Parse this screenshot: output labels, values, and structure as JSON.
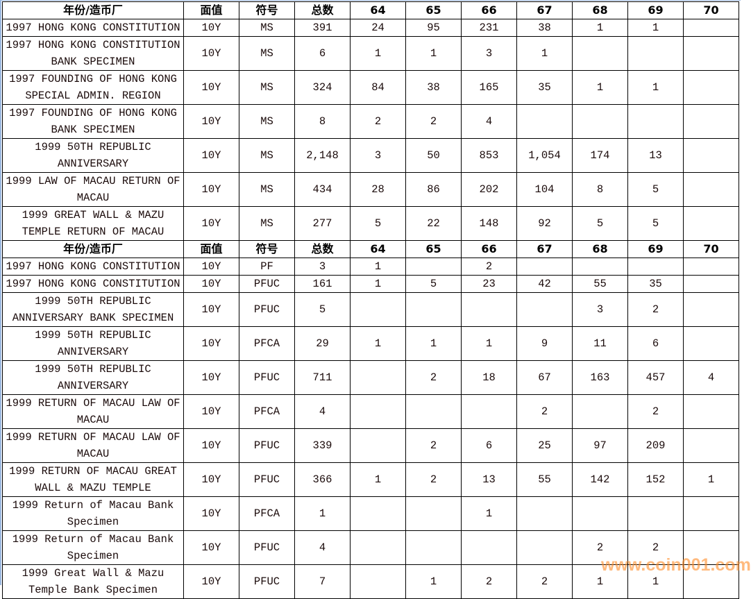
{
  "headers": [
    "年份/造币厂",
    "面值",
    "符号",
    "总数",
    "64",
    "65",
    "66",
    "67",
    "68",
    "69",
    "70"
  ],
  "section1": [
    {
      "name": "1997 HONG KONG CONSTITUTION",
      "d": "10Y",
      "s": "MS",
      "v": [
        "391",
        "24",
        "95",
        "231",
        "38",
        "1",
        "1",
        ""
      ]
    },
    {
      "name": "1997 HONG KONG CONSTITUTION BANK SPECIMEN",
      "d": "10Y",
      "s": "MS",
      "v": [
        "6",
        "1",
        "1",
        "3",
        "1",
        "",
        "",
        ""
      ]
    },
    {
      "name": "1997 FOUNDING OF HONG KONG SPECIAL ADMIN. REGION",
      "d": "10Y",
      "s": "MS",
      "v": [
        "324",
        "84",
        "38",
        "165",
        "35",
        "1",
        "1",
        ""
      ]
    },
    {
      "name": "1997 FOUNDING OF HONG KONG BANK SPECIMEN",
      "d": "10Y",
      "s": "MS",
      "v": [
        "8",
        "2",
        "2",
        "4",
        "",
        "",
        "",
        ""
      ]
    },
    {
      "name": "1999 50TH REPUBLIC ANNIVERSARY",
      "d": "10Y",
      "s": "MS",
      "v": [
        "2,148",
        "3",
        "50",
        "853",
        "1,054",
        "174",
        "13",
        ""
      ]
    },
    {
      "name": "1999 LAW OF MACAU RETURN OF MACAU",
      "d": "10Y",
      "s": "MS",
      "v": [
        "434",
        "28",
        "86",
        "202",
        "104",
        "8",
        "5",
        ""
      ]
    },
    {
      "name": "1999 GREAT WALL & MAZU TEMPLE RETURN OF MACAU",
      "d": "10Y",
      "s": "MS",
      "v": [
        "277",
        "5",
        "22",
        "148",
        "92",
        "5",
        "5",
        ""
      ]
    }
  ],
  "section2": [
    {
      "name": "1997 HONG KONG CONSTITUTION",
      "d": "10Y",
      "s": "PF",
      "v": [
        "3",
        "1",
        "",
        "2",
        "",
        "",
        "",
        ""
      ]
    },
    {
      "name": "1997 HONG KONG CONSTITUTION",
      "d": "10Y",
      "s": "PFUC",
      "v": [
        "161",
        "1",
        "5",
        "23",
        "42",
        "55",
        "35",
        ""
      ]
    },
    {
      "name": "1999 50TH REPUBLIC ANNIVERSARY BANK SPECIMEN",
      "d": "10Y",
      "s": "PFUC",
      "v": [
        "5",
        "",
        "",
        "",
        "",
        "3",
        "2",
        ""
      ]
    },
    {
      "name": "1999 50TH REPUBLIC ANNIVERSARY",
      "d": "10Y",
      "s": "PFCA",
      "v": [
        "29",
        "1",
        "1",
        "1",
        "9",
        "11",
        "6",
        ""
      ]
    },
    {
      "name": "1999 50TH REPUBLIC ANNIVERSARY",
      "d": "10Y",
      "s": "PFUC",
      "v": [
        "711",
        "",
        "2",
        "18",
        "67",
        "163",
        "457",
        "4"
      ]
    },
    {
      "name": "1999 RETURN OF MACAU LAW OF MACAU",
      "d": "10Y",
      "s": "PFCA",
      "v": [
        "4",
        "",
        "",
        "",
        "2",
        "",
        "2",
        ""
      ]
    },
    {
      "name": "1999 RETURN OF MACAU LAW OF MACAU",
      "d": "10Y",
      "s": "PFUC",
      "v": [
        "339",
        "",
        "2",
        "6",
        "25",
        "97",
        "209",
        ""
      ]
    },
    {
      "name": "1999 RETURN OF MACAU GREAT WALL & MAZU TEMPLE",
      "d": "10Y",
      "s": "PFUC",
      "v": [
        "366",
        "1",
        "2",
        "13",
        "55",
        "142",
        "152",
        "1"
      ]
    },
    {
      "name": "1999 Return of Macau Bank Specimen",
      "d": "10Y",
      "s": "PFCA",
      "v": [
        "1",
        "",
        "",
        "1",
        "",
        "",
        "",
        ""
      ]
    },
    {
      "name": "1999 Return of Macau Bank Specimen",
      "d": "10Y",
      "s": "PFUC",
      "v": [
        "4",
        "",
        "",
        "",
        "",
        "2",
        "2",
        ""
      ]
    },
    {
      "name": "1999 Great Wall & Mazu Temple Bank Specimen",
      "d": "10Y",
      "s": "PFUC",
      "v": [
        "7",
        "",
        "1",
        "2",
        "2",
        "1",
        "1",
        ""
      ]
    }
  ],
  "watermark": "www.coin001.com"
}
